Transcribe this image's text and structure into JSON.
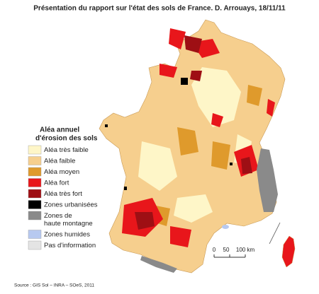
{
  "title": "Présentation du rapport sur l'état des sols de France. D. Arrouays, 18/11/11",
  "legend": {
    "title_lines": [
      "Aléa annuel",
      "d'érosion des sols"
    ],
    "items": [
      {
        "label": "Aléa très faible",
        "color": "#fef6c8"
      },
      {
        "label": "Aléa faible",
        "color": "#f6cf8e"
      },
      {
        "label": "Aléa moyen",
        "color": "#df9a2c"
      },
      {
        "label": "Aléa fort",
        "color": "#e8161b"
      },
      {
        "label": "Aléa très fort",
        "color": "#9e0f14"
      },
      {
        "label": "Zones urbanisées",
        "color": "#000000"
      },
      {
        "label": "Zones de\nhaute montagne",
        "color": "#8a8a8a"
      },
      {
        "label": "Zones humides",
        "color": "#b7c9f0"
      },
      {
        "label": "Pas d'information",
        "color": "#e4e4e4"
      }
    ]
  },
  "scale": {
    "labels": [
      "0",
      "50",
      "100 km"
    ]
  },
  "source": "Source : GIS Sol – INRA – SOeS, 2011"
}
